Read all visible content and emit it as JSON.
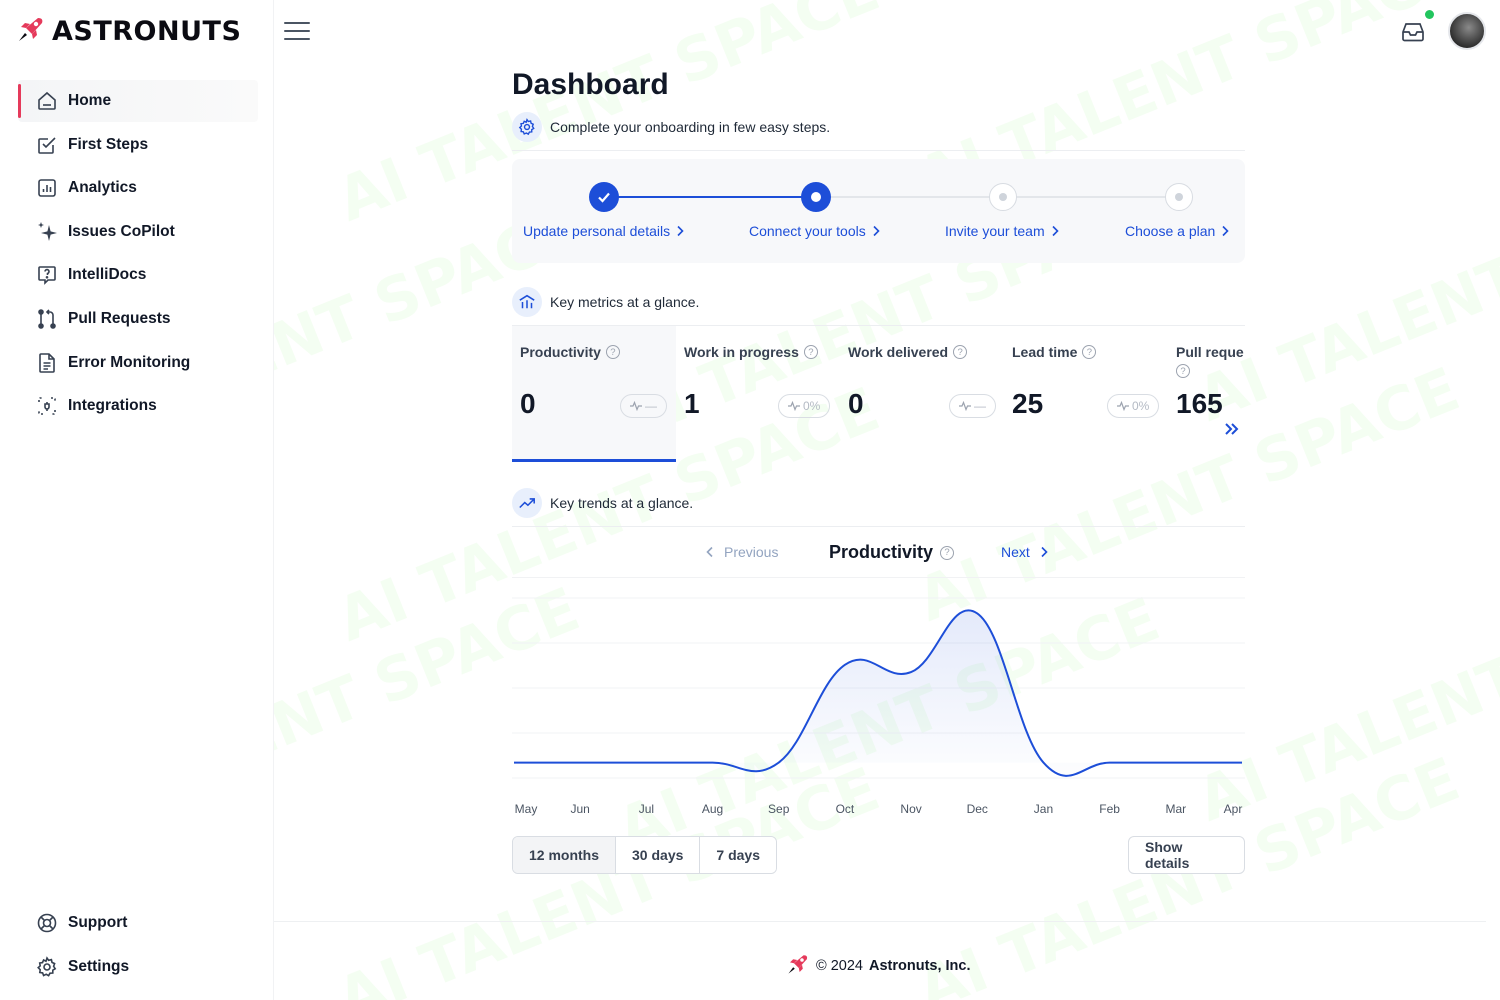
{
  "brand": {
    "name": "ASTRONUTS",
    "accent": "#e53a5b",
    "primary": "#1d4ed8"
  },
  "sidebar": {
    "items": [
      {
        "label": "Home",
        "icon": "home-icon",
        "active": true
      },
      {
        "label": "First Steps",
        "icon": "checklist-icon"
      },
      {
        "label": "Analytics",
        "icon": "bar-chart-icon"
      },
      {
        "label": "Issues CoPilot",
        "icon": "sparkle-icon"
      },
      {
        "label": "IntelliDocs",
        "icon": "help-doc-icon"
      },
      {
        "label": "Pull Requests",
        "icon": "git-pull-request-icon"
      },
      {
        "label": "Error Monitoring",
        "icon": "document-icon"
      },
      {
        "label": "Integrations",
        "icon": "plug-icon"
      }
    ],
    "bottom": [
      {
        "label": "Support",
        "icon": "lifebuoy-icon"
      },
      {
        "label": "Settings",
        "icon": "gear-icon"
      }
    ]
  },
  "header": {
    "title": "Dashboard",
    "onboarding_text": "Complete your onboarding in few easy steps."
  },
  "onboarding": {
    "steps": [
      {
        "label": "Update personal details",
        "status": "done"
      },
      {
        "label": "Connect your tools",
        "status": "current"
      },
      {
        "label": "Invite your team",
        "status": "todo"
      },
      {
        "label": "Choose a plan",
        "status": "todo"
      }
    ]
  },
  "metrics_section": {
    "title": "Key metrics at a glance."
  },
  "metrics": [
    {
      "name": "Productivity",
      "value": "0",
      "trend": "—",
      "active": true
    },
    {
      "name": "Work in progress",
      "value": "1",
      "trend": "0%"
    },
    {
      "name": "Work delivered",
      "value": "0",
      "trend": "—"
    },
    {
      "name": "Lead time",
      "value": "25",
      "trend": "0%"
    },
    {
      "name": "Pull reque",
      "value": "165",
      "trend": ""
    }
  ],
  "trends_section": {
    "title": "Key trends at a glance."
  },
  "chart_nav": {
    "previous": "Previous",
    "title": "Productivity",
    "next": "Next"
  },
  "chart_data": {
    "type": "area",
    "title": "Productivity",
    "categories": [
      "May",
      "Jun",
      "Jul",
      "Aug",
      "Sep",
      "Oct",
      "Nov",
      "Dec",
      "Jan",
      "Feb",
      "Mar",
      "Apr"
    ],
    "values": [
      0,
      0,
      0,
      0,
      0,
      0.95,
      0.88,
      1.45,
      0,
      0,
      0,
      0
    ],
    "ylim": [
      -0.15,
      1.6
    ],
    "grid": true,
    "color": "#1d4ed8"
  },
  "ranges": {
    "options": [
      "12 months",
      "30 days",
      "7 days"
    ],
    "selected": "12 months"
  },
  "show_details": "Show details",
  "footer": {
    "copyright": "© 2024",
    "company": "Astronuts, Inc."
  },
  "watermark": "AI TALENT SPACE"
}
